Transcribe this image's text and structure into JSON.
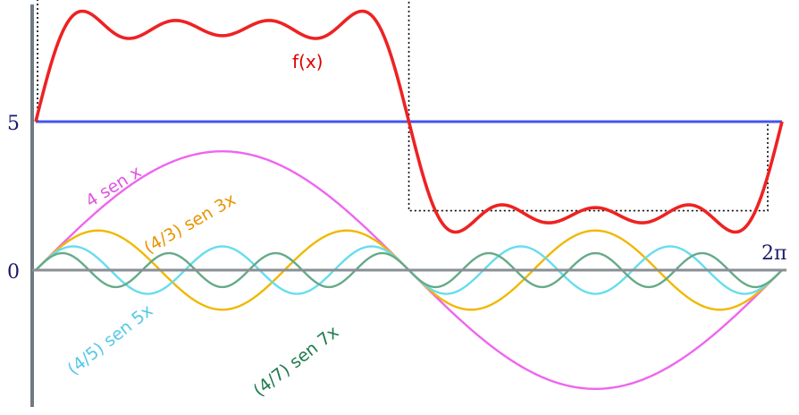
{
  "chart_data": {
    "type": "line",
    "title": "",
    "xlabel": "",
    "ylabel": "",
    "xlim": [
      0,
      6.2832
    ],
    "ylim": [
      -5.0,
      10.0
    ],
    "grid": false,
    "legend": "none",
    "y_tick_labels": [
      "5",
      "0"
    ],
    "x_end_label": "2π",
    "series": [
      {
        "name": "f(x)",
        "color": "#ee2222",
        "formula": "5 + 4 sin x + (4/3) sin 3x + (4/5) sin 5x + (4/7) sin 7x"
      },
      {
        "name": "4 sen x",
        "color": "#ee66ee",
        "coef": 4,
        "k": 1
      },
      {
        "name": "(4/3) sen 3x",
        "color": "#f0b800",
        "coef": 1.3333,
        "k": 3
      },
      {
        "name": "(4/5) sen 5x",
        "color": "#66ddee",
        "coef": 0.8,
        "k": 5
      },
      {
        "name": "(4/7) sen 7x",
        "color": "#66aa88",
        "coef": 0.5714,
        "k": 7
      }
    ],
    "mean_line": {
      "y": 5,
      "color": "#4455ee"
    },
    "square_wave": {
      "high": 10.1,
      "low": 2.0,
      "color": "#000000"
    }
  }
}
